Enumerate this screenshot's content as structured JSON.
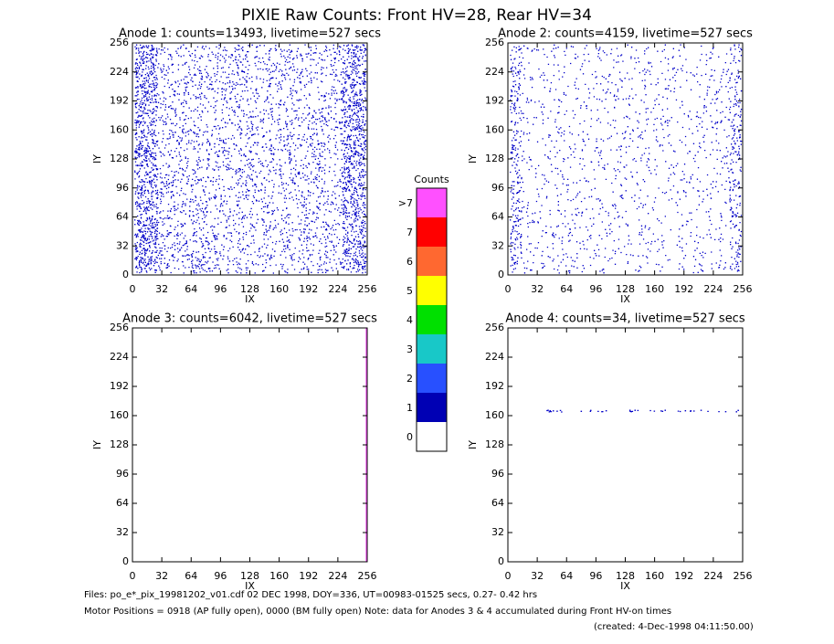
{
  "title": "PIXIE Raw Counts:  Front HV=28, Rear HV=34",
  "chart_data": [
    {
      "type": "scatter",
      "title": "Anode 1: counts=13493, livetime=527 secs",
      "xlabel": "IX",
      "ylabel": "IY",
      "xlim": [
        0,
        256
      ],
      "ylim": [
        0,
        256
      ],
      "xticks": [
        0,
        32,
        64,
        96,
        128,
        160,
        192,
        224,
        256
      ],
      "yticks": [
        0,
        32,
        64,
        96,
        128,
        160,
        192,
        224,
        256
      ]
    },
    {
      "type": "scatter",
      "title": "Anode 2: counts=4159, livetime=527 secs",
      "xlabel": "IX",
      "ylabel": "IY",
      "xlim": [
        0,
        256
      ],
      "ylim": [
        0,
        256
      ],
      "xticks": [
        0,
        32,
        64,
        96,
        128,
        160,
        192,
        224,
        256
      ],
      "yticks": [
        0,
        32,
        64,
        96,
        128,
        160,
        192,
        224,
        256
      ]
    },
    {
      "type": "scatter",
      "title": "Anode 3: counts=6042, livetime=527 secs",
      "xlabel": "IX",
      "ylabel": "IY",
      "xlim": [
        0,
        256
      ],
      "ylim": [
        0,
        256
      ],
      "xticks": [
        0,
        32,
        64,
        96,
        128,
        160,
        192,
        224,
        256
      ],
      "yticks": [
        0,
        32,
        64,
        96,
        128,
        160,
        192,
        224,
        256
      ]
    },
    {
      "type": "scatter",
      "title": "Anode 4: counts=34, livetime=527 secs",
      "xlabel": "IX",
      "ylabel": "IY",
      "xlim": [
        0,
        256
      ],
      "ylim": [
        0,
        256
      ],
      "xticks": [
        0,
        32,
        64,
        96,
        128,
        160,
        192,
        224,
        256
      ],
      "yticks": [
        0,
        32,
        64,
        96,
        128,
        160,
        192,
        224,
        256
      ]
    }
  ],
  "colorbar": {
    "title": "Counts",
    "levels": [
      0,
      1,
      2,
      3,
      4,
      5,
      6,
      7,
      ">7"
    ],
    "colors": [
      "#ffffff",
      "#0000b4",
      "#2850ff",
      "#18c8c8",
      "#00e000",
      "#ffff00",
      "#ff6830",
      "#ff0000",
      "#ff50ff"
    ]
  },
  "footer": [
    "Files: po_e*_pix_19981202_v01.cdf    02 DEC 1998, DOY=336, UT=00983-01525 secs,  0.27- 0.42 hrs",
    "Motor Positions = 0918 (AP fully open), 0000 (BM fully open)    Note: data for Anodes 3 & 4 accumulated during Front HV-on times",
    "(created:  4-Dec-1998 04:11:50.00)"
  ]
}
